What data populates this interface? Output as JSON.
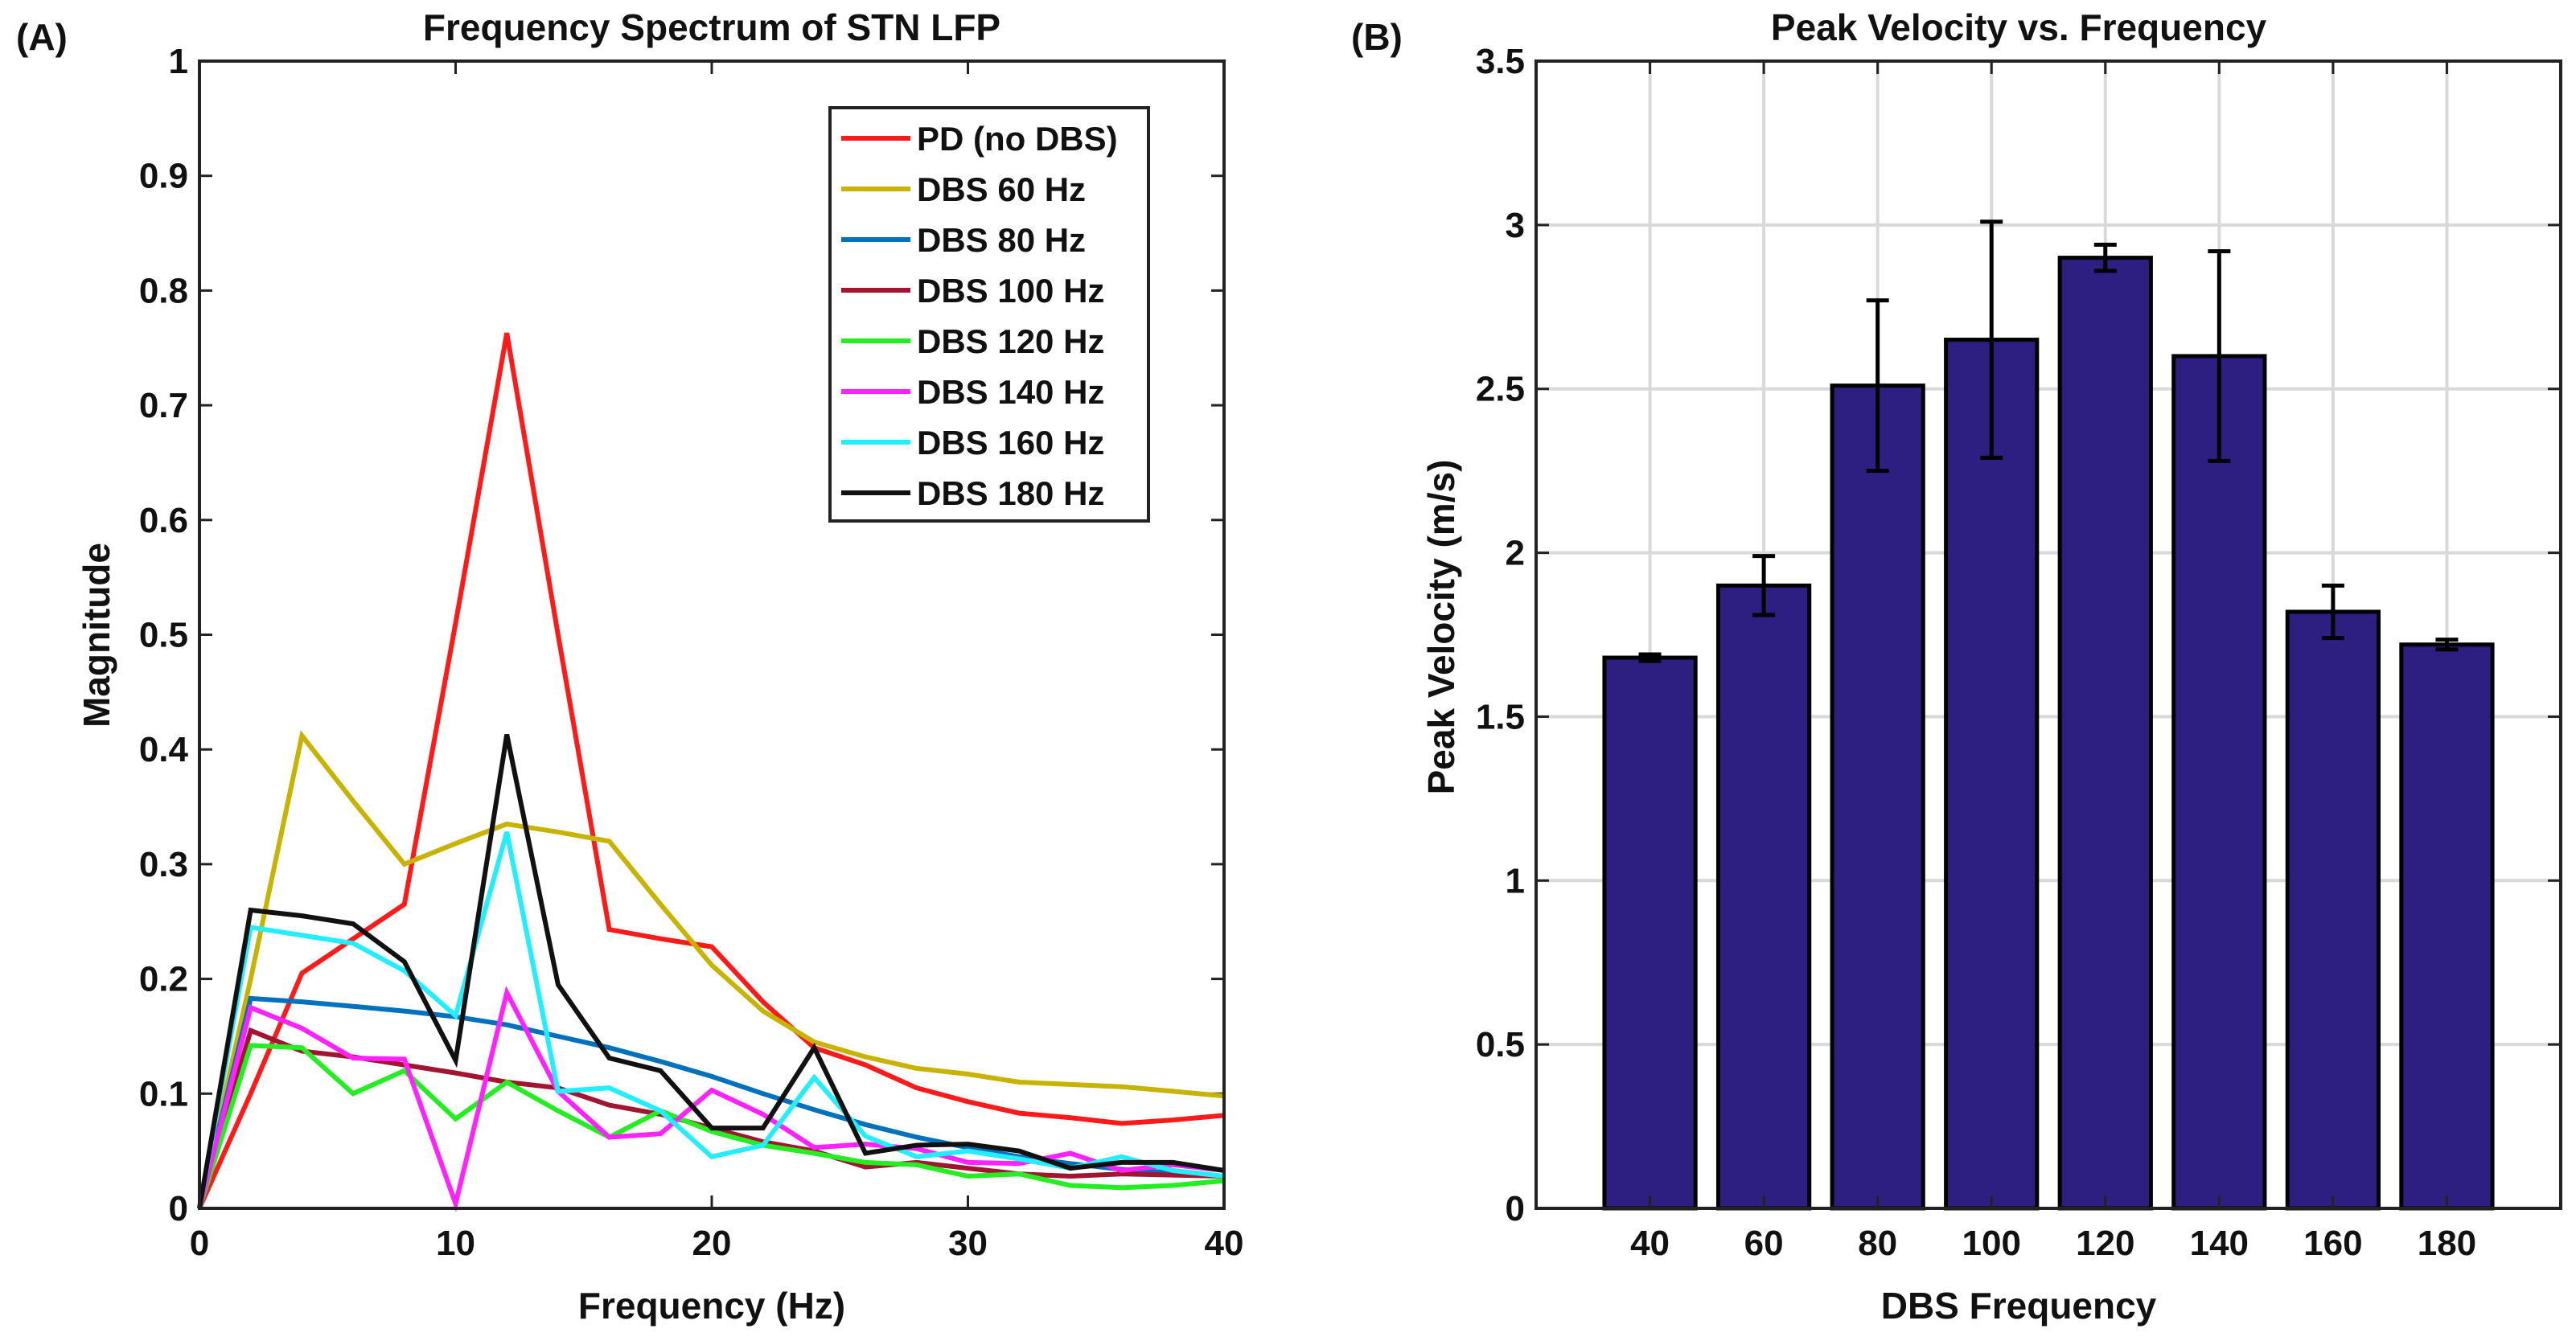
{
  "chart_data": [
    {
      "panel_label": "(A)",
      "type": "line",
      "title": "Frequency Spectrum of STN LFP",
      "xlabel": "Frequency (Hz)",
      "ylabel": "Magnitude",
      "xlim": [
        0,
        40
      ],
      "ylim": [
        0,
        1
      ],
      "xticks": [
        0,
        10,
        20,
        30,
        40
      ],
      "yticks": [
        0,
        0.1,
        0.2,
        0.3,
        0.4,
        0.5,
        0.6,
        0.7,
        0.8,
        0.9,
        1
      ],
      "ytick_labels": [
        "0",
        "0.1",
        "0.2",
        "0.3",
        "0.4",
        "0.5",
        "0.6",
        "0.7",
        "0.8",
        "0.9",
        "1"
      ],
      "grid": false,
      "legend_position": "top-right",
      "x": [
        0,
        2,
        4,
        6,
        8,
        10,
        12,
        14,
        16,
        18,
        20,
        22,
        24,
        26,
        28,
        30,
        32,
        34,
        36,
        38,
        40
      ],
      "series": [
        {
          "name": "PD (no DBS)",
          "color": "#ff1a1a",
          "values": [
            0,
            0.1,
            0.205,
            0.235,
            0.265,
            0.51,
            0.763,
            0.5,
            0.243,
            0.235,
            0.228,
            0.18,
            0.14,
            0.125,
            0.105,
            0.093,
            0.083,
            0.079,
            0.074,
            0.077,
            0.081
          ]
        },
        {
          "name": "DBS 60 Hz",
          "color": "#c8b400",
          "values": [
            0,
            0.2,
            0.412,
            0.355,
            0.3,
            0.318,
            0.335,
            0.328,
            0.32,
            0.265,
            0.212,
            0.172,
            0.145,
            0.132,
            0.122,
            0.117,
            0.11,
            0.108,
            0.106,
            0.102,
            0.098
          ]
        },
        {
          "name": "DBS 80 Hz",
          "color": "#0072bd",
          "values": [
            0,
            0.183,
            0.18,
            0.176,
            0.172,
            0.167,
            0.16,
            0.15,
            0.14,
            0.128,
            0.115,
            0.1,
            0.086,
            0.073,
            0.062,
            0.053,
            0.045,
            0.039,
            0.034,
            0.031,
            0.028
          ]
        },
        {
          "name": "DBS 100 Hz",
          "color": "#a2142f",
          "values": [
            0,
            0.155,
            0.137,
            0.132,
            0.125,
            0.118,
            0.11,
            0.105,
            0.09,
            0.082,
            0.07,
            0.058,
            0.05,
            0.036,
            0.04,
            0.035,
            0.03,
            0.028,
            0.03,
            0.029,
            0.028
          ]
        },
        {
          "name": "DBS 120 Hz",
          "color": "#22ee22",
          "values": [
            0,
            0.142,
            0.14,
            0.1,
            0.12,
            0.078,
            0.11,
            0.085,
            0.062,
            0.085,
            0.067,
            0.055,
            0.048,
            0.04,
            0.038,
            0.028,
            0.03,
            0.02,
            0.018,
            0.02,
            0.024
          ]
        },
        {
          "name": "DBS 140 Hz",
          "color": "#ff22ff",
          "values": [
            0,
            0.175,
            0.157,
            0.131,
            0.13,
            0.004,
            0.188,
            0.102,
            0.062,
            0.065,
            0.103,
            0.082,
            0.053,
            0.056,
            0.052,
            0.04,
            0.039,
            0.048,
            0.033,
            0.038,
            0.033
          ]
        },
        {
          "name": "DBS 160 Hz",
          "color": "#22eeff",
          "values": [
            0,
            0.245,
            0.238,
            0.231,
            0.207,
            0.168,
            0.328,
            0.102,
            0.105,
            0.085,
            0.045,
            0.055,
            0.114,
            0.063,
            0.045,
            0.05,
            0.043,
            0.035,
            0.045,
            0.033,
            0.028
          ]
        },
        {
          "name": "DBS 180 Hz",
          "color": "#111111",
          "values": [
            0,
            0.26,
            0.255,
            0.248,
            0.215,
            0.129,
            0.413,
            0.195,
            0.131,
            0.12,
            0.07,
            0.07,
            0.14,
            0.048,
            0.055,
            0.056,
            0.05,
            0.035,
            0.04,
            0.04,
            0.033
          ]
        }
      ]
    },
    {
      "panel_label": "(B)",
      "type": "bar",
      "title": "Peak Velocity vs. Frequency",
      "xlabel": "DBS Frequency",
      "ylabel": "Peak Velocity (m/s)",
      "ylim": [
        0,
        3.5
      ],
      "yticks": [
        0,
        0.5,
        1,
        1.5,
        2,
        2.5,
        3,
        3.5
      ],
      "ytick_labels": [
        "0",
        "0.5",
        "1",
        "1.5",
        "2",
        "2.5",
        "3",
        "3.5"
      ],
      "grid": true,
      "categories": [
        "40",
        "60",
        "80",
        "100",
        "120",
        "140",
        "160",
        "180"
      ],
      "values": [
        1.68,
        1.9,
        2.51,
        2.65,
        2.9,
        2.6,
        1.82,
        1.72
      ],
      "errors": [
        0.01,
        0.09,
        0.26,
        0.36,
        0.04,
        0.32,
        0.08,
        0.015
      ],
      "bar_color": "#2d1f82",
      "edge_color": "#000000"
    }
  ]
}
